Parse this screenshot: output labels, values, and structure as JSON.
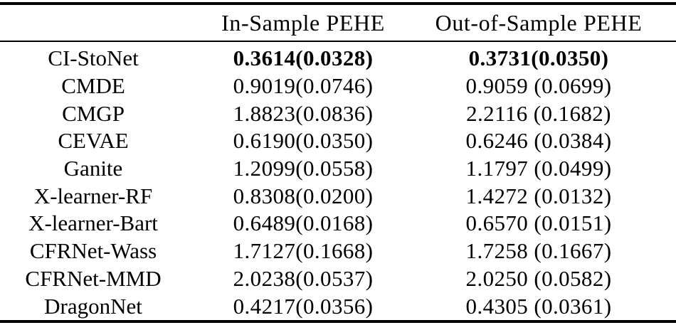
{
  "table": {
    "columns": [
      "",
      "In-Sample PEHE",
      "Out-of-Sample PEHE"
    ],
    "rows": [
      {
        "method": "CI-StoNet",
        "in_sample": "0.3614(0.0328)",
        "out_sample": "0.3731(0.0350)",
        "emphasis": "bold"
      },
      {
        "method": "CMDE",
        "in_sample": "0.9019(0.0746)",
        "out_sample": "0.9059 (0.0699)",
        "emphasis": "normal"
      },
      {
        "method": "CMGP",
        "in_sample": "1.8823(0.0836)",
        "out_sample": "2.2116 (0.1682)",
        "emphasis": "normal"
      },
      {
        "method": "CEVAE",
        "in_sample": "0.6190(0.0350)",
        "out_sample": "0.6246 (0.0384)",
        "emphasis": "normal"
      },
      {
        "method": "Ganite",
        "in_sample": "1.2099(0.0558)",
        "out_sample": "1.1797 (0.0499)",
        "emphasis": "normal"
      },
      {
        "method": "X-learner-RF",
        "in_sample": "0.8308(0.0200)",
        "out_sample": "1.4272 (0.0132)",
        "emphasis": "normal"
      },
      {
        "method": "X-learner-Bart",
        "in_sample": "0.6489(0.0168)",
        "out_sample": "0.6570 (0.0151)",
        "emphasis": "normal"
      },
      {
        "method": "CFRNet-Wass",
        "in_sample": "1.7127(0.1668)",
        "out_sample": "1.7258 (0.1667)",
        "emphasis": "normal"
      },
      {
        "method": "CFRNet-MMD",
        "in_sample": "2.0238(0.0537)",
        "out_sample": "2.0250 (0.0582)",
        "emphasis": "normal"
      },
      {
        "method": "DragonNet",
        "in_sample": "0.4217(0.0356)",
        "out_sample": "0.4305 (0.0361)",
        "emphasis": "normal"
      }
    ]
  },
  "colors": {
    "background": "#ffffff",
    "text": "#000000",
    "rule": "#000000"
  }
}
